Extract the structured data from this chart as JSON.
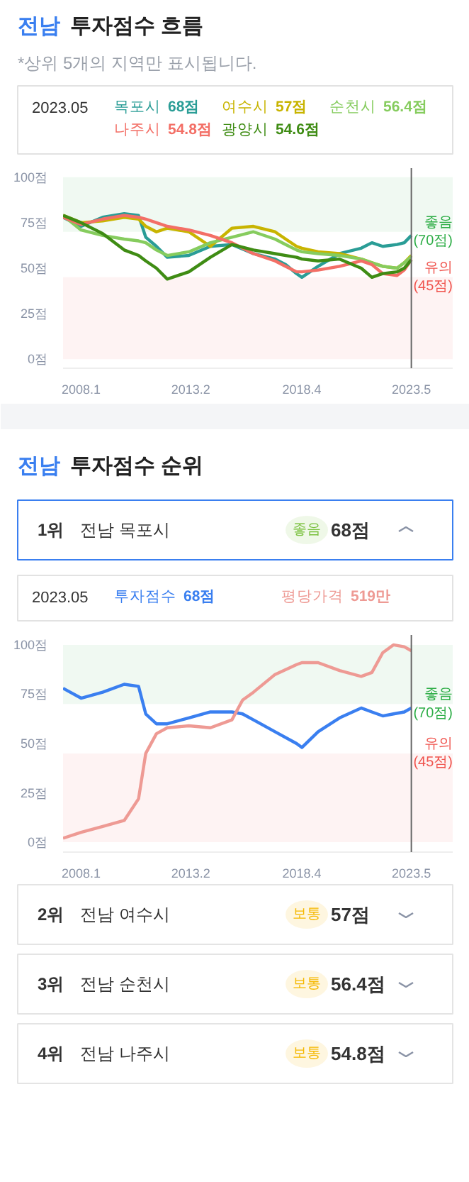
{
  "chart_data": [
    {
      "type": "line",
      "title": "전남 투자점수 흐름",
      "subtitle": "*상위 5개의 지역만 표시됩니다.",
      "legend": "top",
      "annotations": [
        "2023.05",
        "68점",
        "57점",
        "56.4점",
        "54.8점",
        "54.6점"
      ],
      "x": [
        "2007-03",
        "2008-01",
        "2009-01",
        "2010-01",
        "2010-09",
        "2011-01",
        "2011-07",
        "2012-01",
        "2013-01",
        "2014-01",
        "2015-01",
        "2016-01",
        "2017-01",
        "2017-07",
        "2018-01",
        "2018-04",
        "2019-01",
        "2020-01",
        "2021-01",
        "2021-07",
        "2022-01",
        "2022-09",
        "2023-01",
        "2023-05"
      ],
      "series": [
        {
          "name": "목포시",
          "color": "#2a9d96",
          "values": [
            78,
            73,
            78,
            80,
            79,
            67,
            62,
            56,
            57,
            62,
            63,
            58,
            55,
            52,
            47,
            45,
            51,
            58,
            61,
            64,
            62,
            63,
            64,
            68
          ]
        },
        {
          "name": "여수시",
          "color": "#c8b400",
          "values": [
            79,
            75,
            76,
            78,
            77,
            73,
            70,
            72,
            70,
            62,
            72,
            73,
            70,
            66,
            62,
            61,
            59,
            58,
            55,
            53,
            51,
            50,
            53,
            57
          ]
        },
        {
          "name": "순천시",
          "color": "#86cc5e",
          "values": [
            79,
            71,
            68,
            66,
            65,
            64,
            60,
            57,
            59,
            64,
            67,
            70,
            66,
            63,
            60,
            59,
            58,
            57,
            55,
            53,
            51,
            50,
            53,
            56.4
          ]
        },
        {
          "name": "나주시",
          "color": "#f36f66",
          "values": [
            78,
            74,
            77,
            79,
            78,
            77,
            75,
            73,
            71,
            68,
            64,
            58,
            54,
            51,
            48,
            48,
            49,
            51,
            54,
            52,
            47,
            46,
            49,
            54.8
          ]
        },
        {
          "name": "광양시",
          "color": "#3f8c14",
          "values": [
            79,
            75,
            69,
            60,
            57,
            54,
            50,
            44,
            48,
            56,
            63,
            60,
            58,
            57,
            56,
            55,
            54,
            55,
            50,
            45,
            47,
            48,
            50,
            54.6
          ]
        }
      ],
      "xlim": [
        "2007-03",
        "2025-04"
      ],
      "ylim": [
        -5,
        105
      ],
      "xticks": [
        {
          "value": "2008-01",
          "label": "2008.1"
        },
        {
          "value": "2013-02",
          "label": "2013.2"
        },
        {
          "value": "2018-04",
          "label": "2018.4"
        },
        {
          "value": "2023-05",
          "label": "2023.5"
        }
      ],
      "yticks": [
        {
          "value": 0,
          "label": "0점"
        },
        {
          "value": 25,
          "label": "25점"
        },
        {
          "value": 50,
          "label": "50점"
        },
        {
          "value": 75,
          "label": "75점"
        },
        {
          "value": 100,
          "label": "100점"
        }
      ],
      "bands": [
        {
          "axis": "y",
          "from": 70,
          "to": 100,
          "label": "좋음\n(70점)",
          "color": "#2fae48"
        },
        {
          "axis": "y",
          "from": 0,
          "to": 45,
          "label": "유의\n(45점)",
          "color": "#f0554f"
        }
      ],
      "ref_lines": [
        {
          "axis": "x",
          "value": "2023-05",
          "color": "#666666"
        }
      ]
    },
    {
      "type": "other",
      "title": "전남 투자점수 순위",
      "categories": [
        "전남 목포시"
      ],
      "annotations": [
        "1위",
        "좋음",
        "68점"
      ]
    },
    {
      "type": "line",
      "legend": "top",
      "annotations": [
        "2023.05",
        "68점",
        "519만"
      ],
      "x": [
        "2007-03",
        "2008-01",
        "2009-01",
        "2010-01",
        "2010-09",
        "2011-01",
        "2011-07",
        "2012-01",
        "2013-01",
        "2014-01",
        "2015-01",
        "2015-07",
        "2016-01",
        "2017-01",
        "2018-01",
        "2018-04",
        "2019-01",
        "2020-01",
        "2021-01",
        "2021-07",
        "2022-01",
        "2022-07",
        "2023-01",
        "2023-05"
      ],
      "series": [
        {
          "name": "투자점수",
          "color": "#3a7ff0",
          "values": [
            78,
            73,
            76,
            80,
            79,
            65,
            60,
            60,
            63,
            66,
            66,
            65,
            62,
            56,
            50,
            48,
            56,
            63,
            68,
            66,
            64,
            65,
            66,
            68
          ]
        },
        {
          "name": "평당가격",
          "color": "#ee9a94",
          "values": [
            2,
            5,
            8,
            11,
            22,
            45,
            55,
            58,
            59,
            58,
            62,
            72,
            76,
            85,
            90,
            91,
            91,
            87,
            84,
            86,
            96,
            100,
            99,
            97
          ]
        }
      ],
      "xlim": [
        "2007-03",
        "2025-04"
      ],
      "ylim": [
        -5,
        105
      ],
      "xticks": [
        {
          "value": "2008-01",
          "label": "2008.1"
        },
        {
          "value": "2013-02",
          "label": "2013.2"
        },
        {
          "value": "2018-04",
          "label": "2018.4"
        },
        {
          "value": "2023-05",
          "label": "2023.5"
        }
      ],
      "yticks": [
        {
          "value": 0,
          "label": "0점"
        },
        {
          "value": 25,
          "label": "25점"
        },
        {
          "value": 50,
          "label": "50점"
        },
        {
          "value": 75,
          "label": "75점"
        },
        {
          "value": 100,
          "label": "100점"
        }
      ],
      "bands": [
        {
          "axis": "y",
          "from": 70,
          "to": 100,
          "label": "좋음\n(70점)",
          "color": "#2fae48"
        },
        {
          "axis": "y",
          "from": 0,
          "to": 45,
          "label": "유의\n(45점)",
          "color": "#f0554f"
        }
      ],
      "ref_lines": [
        {
          "axis": "x",
          "value": "2023-05",
          "color": "#666666"
        }
      ]
    },
    {
      "type": "other",
      "categories": [
        "전남 여수시",
        "전남 순천시",
        "전남 나주시"
      ],
      "annotations": [
        "2위",
        "보통",
        "57점",
        "3위",
        "보통",
        "56.4점",
        "4위",
        "보통",
        "54.8점"
      ]
    }
  ]
}
